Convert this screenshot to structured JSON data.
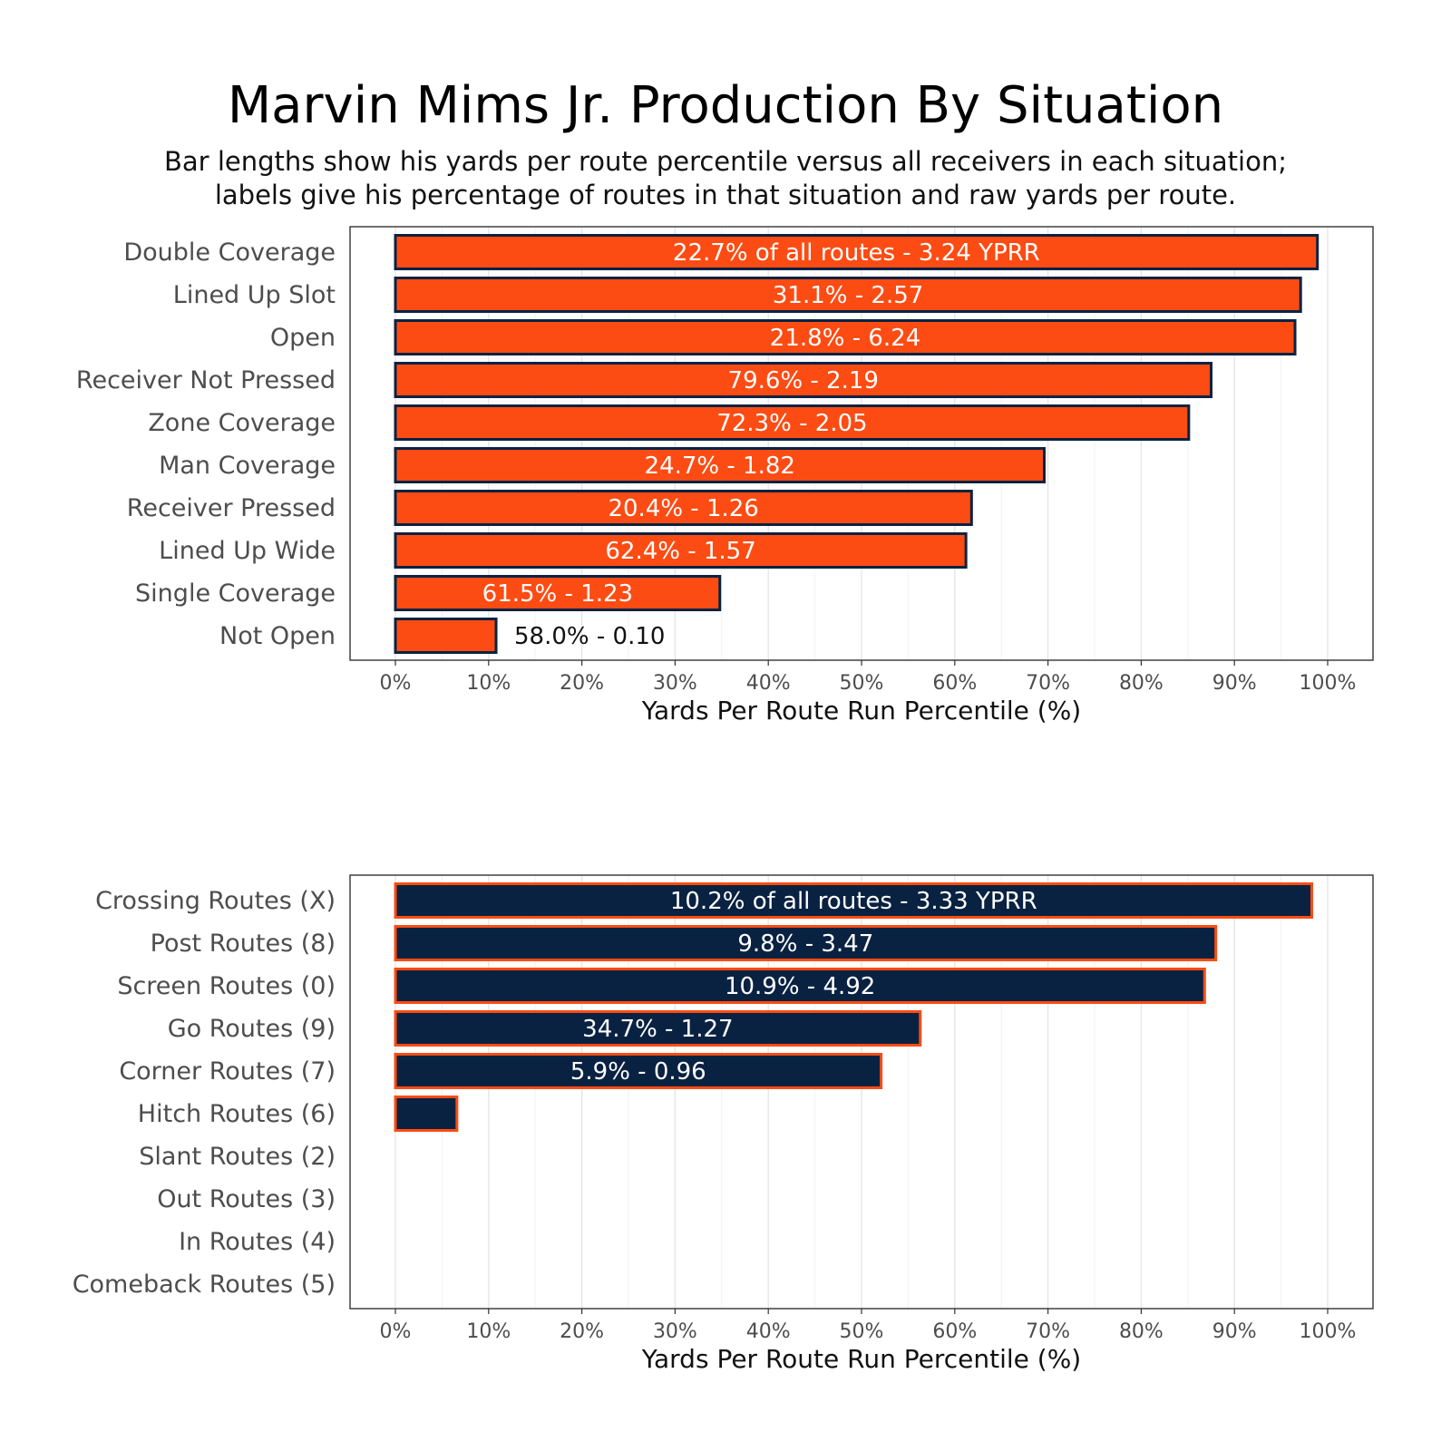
{
  "title": "Marvin Mims Jr. Production By Situation",
  "subtitle": [
    "Bar lengths show his yards per route percentile versus all receivers in each situation;",
    "labels give his percentage of routes in that situation and raw yards per route."
  ],
  "colors": {
    "orange": "#fc4c13",
    "navy": "#0a2242",
    "grid": "#e4e4e4",
    "axis_text": "#4d4d4d"
  },
  "chart_data": [
    {
      "type": "bar",
      "orientation": "horizontal",
      "xlabel": "Yards Per Route Run Percentile (%)",
      "xlim": [
        0,
        100
      ],
      "xticks": [
        "0%",
        "10%",
        "20%",
        "30%",
        "40%",
        "50%",
        "60%",
        "70%",
        "80%",
        "90%",
        "100%"
      ],
      "fill": "#fc4c13",
      "stroke": "#0a2242",
      "categories": [
        "Double Coverage",
        "Lined Up Slot",
        "Open",
        "Receiver Not Pressed",
        "Zone Coverage",
        "Man Coverage",
        "Receiver Pressed",
        "Lined Up Wide",
        "Single Coverage",
        "Not Open"
      ],
      "values": [
        98.9,
        97.1,
        96.5,
        87.5,
        85.1,
        69.6,
        61.8,
        61.2,
        34.8,
        10.8
      ],
      "labels": [
        "22.7% of all routes - 3.24 YPRR",
        "31.1% - 2.57",
        "21.8% - 6.24",
        "79.6% - 2.19",
        "72.3% - 2.05",
        "24.7% - 1.82",
        "20.4% - 1.26",
        "62.4% - 1.57",
        "61.5% - 1.23",
        "58.0% - 0.10"
      ]
    },
    {
      "type": "bar",
      "orientation": "horizontal",
      "xlabel": "Yards Per Route Run Percentile (%)",
      "xlim": [
        0,
        100
      ],
      "xticks": [
        "0%",
        "10%",
        "20%",
        "30%",
        "40%",
        "50%",
        "60%",
        "70%",
        "80%",
        "90%",
        "100%"
      ],
      "fill": "#0a2242",
      "stroke": "#fc4c13",
      "categories": [
        "Crossing Routes (X)",
        "Post Routes (8)",
        "Screen Routes (0)",
        "Go Routes (9)",
        "Corner Routes (7)",
        "Hitch Routes (6)",
        "Slant Routes (2)",
        "Out Routes (3)",
        "In Routes (4)",
        "Comeback Routes (5)"
      ],
      "values": [
        98.3,
        88.0,
        86.8,
        56.3,
        52.1,
        6.6,
        0,
        0,
        0,
        0
      ],
      "labels": [
        "10.2% of all routes - 3.33 YPRR",
        "9.8% - 3.47",
        "10.9% - 4.92",
        "34.7% - 1.27",
        "5.9% - 0.96",
        "",
        "",
        "",
        "",
        ""
      ]
    }
  ]
}
